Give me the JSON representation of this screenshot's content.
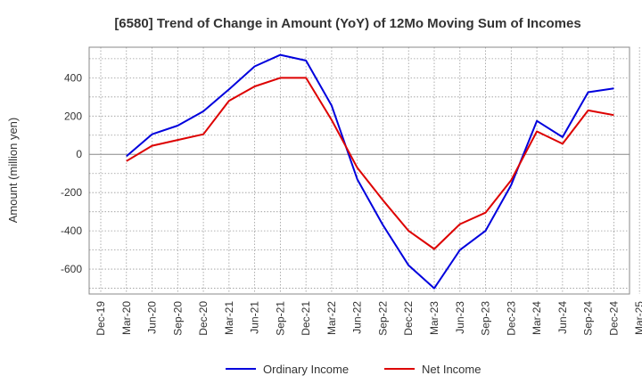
{
  "chart_data": {
    "type": "line",
    "title": "[6580]  Trend of Change in Amount (YoY) of 12Mo Moving Sum of Incomes",
    "xlabel": "",
    "ylabel": "Amount (million yen)",
    "ylim": [
      -730,
      560
    ],
    "yticks": [
      400,
      200,
      0,
      -200,
      -400,
      -600
    ],
    "ytick_labels": [
      "400",
      "200",
      "0",
      "-200",
      "-400",
      "-600"
    ],
    "categories": [
      "Dec-19",
      "Mar-20",
      "Jun-20",
      "Sep-20",
      "Dec-20",
      "Mar-21",
      "Jun-21",
      "Sep-21",
      "Dec-21",
      "Mar-22",
      "Jun-22",
      "Sep-22",
      "Dec-22",
      "Mar-23",
      "Jun-23",
      "Sep-23",
      "Dec-23",
      "Mar-24",
      "Jun-24",
      "Sep-24",
      "Dec-24",
      "Mar-25"
    ],
    "grid": true,
    "legend_position": "bottom",
    "series": [
      {
        "name": "Ordinary Income",
        "color": "#0000dd",
        "values": [
          null,
          -10,
          105,
          150,
          225,
          340,
          460,
          520,
          490,
          255,
          -130,
          -370,
          -580,
          -700,
          -500,
          -400,
          -160,
          175,
          90,
          325,
          345,
          null
        ]
      },
      {
        "name": "Net Income",
        "color": "#dd0000",
        "values": [
          null,
          -35,
          45,
          75,
          105,
          280,
          355,
          400,
          400,
          180,
          -70,
          -240,
          -400,
          -495,
          -365,
          -305,
          -135,
          120,
          55,
          230,
          205,
          null
        ]
      }
    ]
  }
}
